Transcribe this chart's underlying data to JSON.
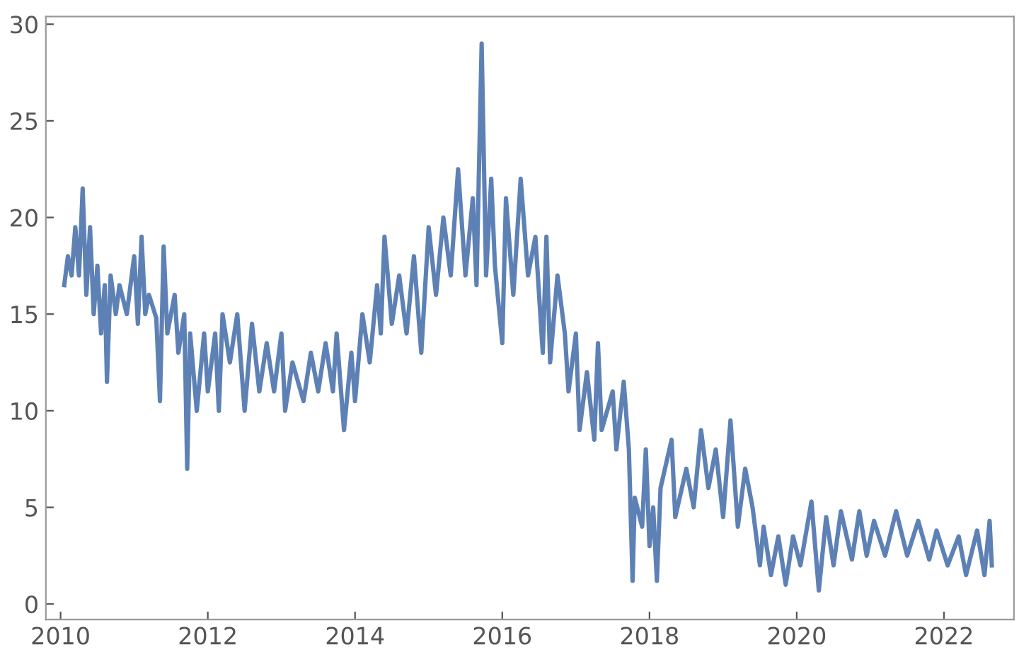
{
  "chart_data": {
    "type": "line",
    "x": [
      2010.05,
      2010.1,
      2010.15,
      2010.2,
      2010.25,
      2010.3,
      2010.35,
      2010.4,
      2010.45,
      2010.5,
      2010.55,
      2010.6,
      2010.63,
      2010.68,
      2010.75,
      2010.8,
      2010.9,
      2011.0,
      2011.05,
      2011.1,
      2011.15,
      2011.2,
      2011.3,
      2011.35,
      2011.4,
      2011.45,
      2011.55,
      2011.6,
      2011.68,
      2011.72,
      2011.76,
      2011.85,
      2011.95,
      2012.0,
      2012.1,
      2012.15,
      2012.2,
      2012.3,
      2012.4,
      2012.5,
      2012.6,
      2012.7,
      2012.8,
      2012.9,
      2013.0,
      2013.05,
      2013.15,
      2013.3,
      2013.4,
      2013.5,
      2013.6,
      2013.7,
      2013.75,
      2013.85,
      2013.95,
      2014.0,
      2014.1,
      2014.2,
      2014.3,
      2014.35,
      2014.4,
      2014.5,
      2014.6,
      2014.7,
      2014.8,
      2014.9,
      2015.0,
      2015.1,
      2015.2,
      2015.3,
      2015.4,
      2015.5,
      2015.6,
      2015.65,
      2015.72,
      2015.78,
      2015.85,
      2015.9,
      2016.0,
      2016.05,
      2016.15,
      2016.25,
      2016.35,
      2016.45,
      2016.55,
      2016.6,
      2016.65,
      2016.75,
      2016.85,
      2016.9,
      2017.0,
      2017.05,
      2017.15,
      2017.25,
      2017.3,
      2017.35,
      2017.5,
      2017.55,
      2017.65,
      2017.72,
      2017.77,
      2017.8,
      2017.9,
      2017.95,
      2018.0,
      2018.05,
      2018.1,
      2018.15,
      2018.3,
      2018.35,
      2018.5,
      2018.6,
      2018.7,
      2018.8,
      2018.9,
      2019.0,
      2019.1,
      2019.2,
      2019.3,
      2019.4,
      2019.5,
      2019.55,
      2019.65,
      2019.75,
      2019.85,
      2019.95,
      2020.05,
      2020.2,
      2020.3,
      2020.4,
      2020.5,
      2020.6,
      2020.75,
      2020.85,
      2020.95,
      2021.05,
      2021.2,
      2021.35,
      2021.5,
      2021.65,
      2021.8,
      2021.9,
      2022.05,
      2022.2,
      2022.3,
      2022.45,
      2022.55,
      2022.62,
      2022.65
    ],
    "series": [
      {
        "color": "#5e81b5",
        "values": [
          16.5,
          18,
          17,
          19.5,
          17,
          21.5,
          16,
          19.5,
          15,
          17.5,
          14,
          16.5,
          11.5,
          17,
          15,
          16.5,
          15,
          18,
          14.5,
          19,
          15,
          16,
          14.8,
          10.5,
          18.5,
          14,
          16,
          13,
          15,
          7,
          14,
          10,
          14,
          11,
          14,
          10,
          15,
          12.5,
          15,
          10,
          14.5,
          11,
          13.5,
          11,
          14,
          10,
          12.5,
          10.5,
          13,
          11,
          13.5,
          11,
          14,
          9,
          13,
          10.5,
          15,
          12.5,
          16.5,
          14,
          19,
          14.5,
          17,
          14,
          18,
          13,
          19.5,
          16,
          20,
          17,
          22.5,
          17,
          21,
          16.5,
          29,
          17,
          22,
          17.5,
          13.5,
          21,
          16,
          22,
          17,
          19,
          13,
          19,
          12.5,
          17,
          14,
          11,
          14,
          9,
          12,
          8.5,
          13.5,
          9,
          11,
          8,
          11.5,
          8,
          1.2,
          5.5,
          4,
          8,
          3,
          5,
          1.2,
          6,
          8.5,
          4.5,
          7,
          5,
          9,
          6,
          8,
          4.5,
          9.5,
          4,
          7,
          5,
          2,
          4,
          1.5,
          3.5,
          1,
          3.5,
          2,
          5.3,
          0.7,
          4.5,
          2,
          4.8,
          2.3,
          4.8,
          2.5,
          4.3,
          2.5,
          4.8,
          2.5,
          4.3,
          2.3,
          3.8,
          2,
          3.5,
          1.5,
          3.8,
          1.5,
          4.3,
          2
        ]
      }
    ],
    "xlim": [
      2009.8,
      2022.95
    ],
    "ylim": [
      -0.8,
      30.4
    ],
    "xticks": [
      2010,
      2012,
      2014,
      2016,
      2018,
      2020,
      2022
    ],
    "yticks": [
      0,
      5,
      10,
      15,
      20,
      25,
      30
    ]
  }
}
